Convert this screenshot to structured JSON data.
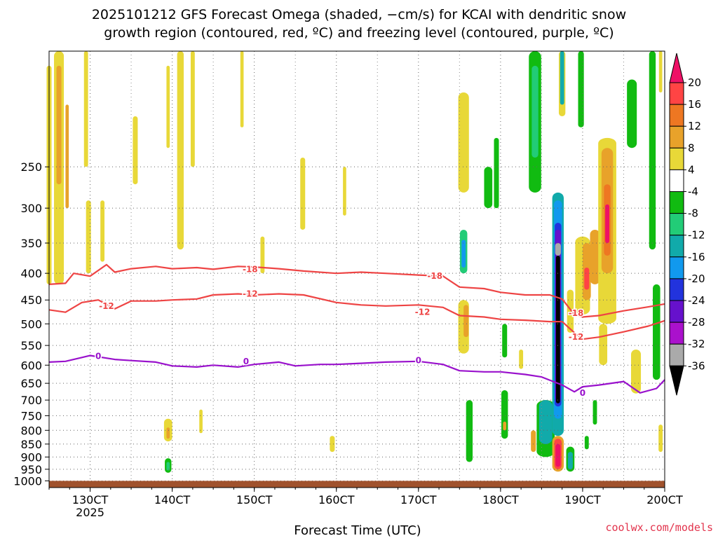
{
  "chart_data": {
    "type": "heatmap",
    "title_line1": "2025101212 GFS Forecast Omega (shaded, −cm/s) for KCAI with dendritic snow",
    "title_line2": "growth region (contoured, red, ºC) and freezing level (contoured, purple, ºC)",
    "xlabel": "Forecast Time (UTC)",
    "credit": "coolwx.com/models",
    "x_ticks": [
      {
        "label": "130CT",
        "value": 13
      },
      {
        "label": "140CT",
        "value": 14
      },
      {
        "label": "150CT",
        "value": 15
      },
      {
        "label": "160CT",
        "value": 16
      },
      {
        "label": "170CT",
        "value": 17
      },
      {
        "label": "180CT",
        "value": 18
      },
      {
        "label": "190CT",
        "value": 19
      },
      {
        "label": "200CT",
        "value": 20
      }
    ],
    "x_sublabel": "2025",
    "xlim": [
      12.5,
      20
    ],
    "y_ticks": [
      "250",
      "300",
      "350",
      "400",
      "450",
      "500",
      "550",
      "600",
      "650",
      "700",
      "750",
      "800",
      "850",
      "900",
      "950",
      "1000"
    ],
    "y_tick_values": [
      250,
      300,
      350,
      400,
      450,
      500,
      550,
      600,
      650,
      700,
      750,
      800,
      850,
      900,
      950,
      1000
    ],
    "ylim": [
      1030,
      150
    ],
    "y_scale": "log",
    "grid": true,
    "colorbar": {
      "labels": [
        "20",
        "16",
        "12",
        "8",
        "4",
        "-4",
        "-8",
        "-12",
        "-16",
        "-20",
        "-24",
        "-28",
        "-32",
        "-36"
      ],
      "colors": [
        "#ee1166",
        "#ff4444",
        "#ee7722",
        "#e8a22a",
        "#e8d838",
        "#ffffff",
        "#11bb11",
        "#22cc77",
        "#11aaaa",
        "#1199ee",
        "#2233dd",
        "#6611cc",
        "#aa11cc",
        "#aaaaaa",
        "#000000"
      ]
    },
    "series": [
      {
        "name": "-18",
        "color": "#ee4444",
        "x": [
          12.5,
          12.7,
          12.8,
          13.0,
          13.2,
          13.3,
          13.5,
          13.8,
          14.0,
          14.3,
          14.5,
          14.8,
          15.0,
          15.3,
          15.6,
          16.0,
          16.3,
          16.6,
          17.0,
          17.3,
          17.5,
          17.8,
          18.0,
          18.3,
          18.6,
          18.75,
          18.9,
          19.0,
          19.2,
          19.5,
          19.8,
          20.0
        ],
        "y": [
          420,
          418,
          400,
          405,
          385,
          398,
          392,
          388,
          392,
          390,
          393,
          388,
          389,
          392,
          396,
          400,
          398,
          400,
          403,
          405,
          425,
          428,
          435,
          440,
          440,
          448,
          480,
          485,
          482,
          472,
          464,
          458
        ]
      },
      {
        "name": "-12",
        "color": "#ee4444",
        "x": [
          12.5,
          12.7,
          12.9,
          13.1,
          13.3,
          13.5,
          13.8,
          14.0,
          14.3,
          14.5,
          14.8,
          15.0,
          15.3,
          15.6,
          16.0,
          16.3,
          16.6,
          17.0,
          17.3,
          17.5,
          17.8,
          18.0,
          18.3,
          18.6,
          18.75,
          18.9,
          19.0,
          19.2,
          19.5,
          19.8,
          20.0
        ],
        "y": [
          470,
          475,
          455,
          450,
          468,
          452,
          452,
          450,
          448,
          440,
          438,
          440,
          438,
          440,
          455,
          460,
          462,
          460,
          465,
          482,
          485,
          490,
          492,
          495,
          495,
          520,
          535,
          530,
          518,
          505,
          493
        ]
      },
      {
        "name": "0",
        "color": "#9911cc",
        "x": [
          12.5,
          12.7,
          12.9,
          13.0,
          13.3,
          13.5,
          13.8,
          14.0,
          14.3,
          14.5,
          14.8,
          15.0,
          15.3,
          15.5,
          15.8,
          16.0,
          16.3,
          16.6,
          17.0,
          17.3,
          17.5,
          17.8,
          18.0,
          18.3,
          18.5,
          18.75,
          18.9,
          19.0,
          19.2,
          19.5,
          19.7,
          19.9,
          20.0
        ],
        "y": [
          592,
          590,
          580,
          575,
          585,
          588,
          592,
          602,
          605,
          600,
          605,
          598,
          592,
          602,
          598,
          598,
          595,
          592,
          590,
          598,
          615,
          618,
          618,
          625,
          632,
          655,
          675,
          660,
          655,
          645,
          678,
          665,
          640
        ]
      }
    ],
    "contour_labels": [
      {
        "text": "-18",
        "x": 14.95,
        "y": 393,
        "color": "#ee4444"
      },
      {
        "text": "-18",
        "x": 17.2,
        "y": 405,
        "color": "#ee4444"
      },
      {
        "text": "-18",
        "x": 18.92,
        "y": 477,
        "color": "#ee4444"
      },
      {
        "text": "-12",
        "x": 13.2,
        "y": 462,
        "color": "#ee4444"
      },
      {
        "text": "-12",
        "x": 14.95,
        "y": 438,
        "color": "#ee4444"
      },
      {
        "text": "-12",
        "x": 17.05,
        "y": 475,
        "color": "#ee4444"
      },
      {
        "text": "-12",
        "x": 18.92,
        "y": 530,
        "color": "#ee4444"
      },
      {
        "text": "0",
        "x": 13.1,
        "y": 577,
        "color": "#9911cc"
      },
      {
        "text": "0",
        "x": 14.9,
        "y": 590,
        "color": "#9911cc"
      },
      {
        "text": "0",
        "x": 17.0,
        "y": 588,
        "color": "#9911cc"
      },
      {
        "text": "0",
        "x": 19.0,
        "y": 678,
        "color": "#9911cc"
      }
    ],
    "shaded_regions": [
      {
        "x": 12.62,
        "p1": 150,
        "p2": 420,
        "w": 0.12,
        "color": "#e8d838"
      },
      {
        "x": 12.62,
        "p1": 160,
        "p2": 270,
        "w": 0.06,
        "color": "#e8a22a"
      },
      {
        "x": 12.72,
        "p1": 190,
        "p2": 300,
        "w": 0.04,
        "color": "#e8a22a"
      },
      {
        "x": 12.5,
        "p1": 160,
        "p2": 420,
        "w": 0.06,
        "color": "#e8d838"
      },
      {
        "x": 12.95,
        "p1": 150,
        "p2": 250,
        "w": 0.05,
        "color": "#e8d838"
      },
      {
        "x": 12.98,
        "p1": 290,
        "p2": 400,
        "w": 0.06,
        "color": "#e8d838"
      },
      {
        "x": 13.15,
        "p1": 290,
        "p2": 380,
        "w": 0.05,
        "color": "#e8d838"
      },
      {
        "x": 13.55,
        "p1": 200,
        "p2": 270,
        "w": 0.06,
        "color": "#e8d838"
      },
      {
        "x": 14.1,
        "p1": 150,
        "p2": 360,
        "w": 0.08,
        "color": "#e8d838"
      },
      {
        "x": 14.25,
        "p1": 150,
        "p2": 250,
        "w": 0.05,
        "color": "#e8d838"
      },
      {
        "x": 13.95,
        "p1": 160,
        "p2": 230,
        "w": 0.04,
        "color": "#e8d838"
      },
      {
        "x": 14.85,
        "p1": 150,
        "p2": 210,
        "w": 0.04,
        "color": "#e8d838"
      },
      {
        "x": 15.59,
        "p1": 240,
        "p2": 330,
        "w": 0.06,
        "color": "#e8d838"
      },
      {
        "x": 15.1,
        "p1": 340,
        "p2": 400,
        "w": 0.05,
        "color": "#e8d838"
      },
      {
        "x": 16.1,
        "p1": 250,
        "p2": 310,
        "w": 0.04,
        "color": "#e8d838"
      },
      {
        "x": 13.95,
        "p1": 760,
        "p2": 840,
        "w": 0.1,
        "color": "#e8d838"
      },
      {
        "x": 13.95,
        "p1": 790,
        "p2": 830,
        "w": 0.04,
        "color": "#e8a22a"
      },
      {
        "x": 14.35,
        "p1": 730,
        "p2": 810,
        "w": 0.04,
        "color": "#e8d838"
      },
      {
        "x": 15.95,
        "p1": 820,
        "p2": 880,
        "w": 0.06,
        "color": "#e8d838"
      },
      {
        "x": 13.95,
        "p1": 905,
        "p2": 965,
        "w": 0.08,
        "color": "#11bb11"
      },
      {
        "x": 13.95,
        "p1": 920,
        "p2": 955,
        "w": 0.04,
        "color": "#22cc77"
      },
      {
        "x": 17.55,
        "p1": 180,
        "p2": 280,
        "w": 0.13,
        "color": "#e8d838"
      },
      {
        "x": 17.55,
        "p1": 450,
        "p2": 570,
        "w": 0.13,
        "color": "#e8d838"
      },
      {
        "x": 17.58,
        "p1": 460,
        "p2": 530,
        "w": 0.06,
        "color": "#e8a22a"
      },
      {
        "x": 17.55,
        "p1": 330,
        "p2": 400,
        "w": 0.09,
        "color": "#22cc77"
      },
      {
        "x": 17.55,
        "p1": 345,
        "p2": 390,
        "w": 0.05,
        "color": "#1199ee"
      },
      {
        "x": 17.62,
        "p1": 700,
        "p2": 920,
        "w": 0.08,
        "color": "#11bb11"
      },
      {
        "x": 17.85,
        "p1": 250,
        "p2": 300,
        "w": 0.1,
        "color": "#11bb11"
      },
      {
        "x": 17.95,
        "p1": 220,
        "p2": 300,
        "w": 0.06,
        "color": "#11bb11"
      },
      {
        "x": 18.05,
        "p1": 500,
        "p2": 580,
        "w": 0.06,
        "color": "#11bb11"
      },
      {
        "x": 18.05,
        "p1": 670,
        "p2": 830,
        "w": 0.08,
        "color": "#11bb11"
      },
      {
        "x": 18.05,
        "p1": 770,
        "p2": 800,
        "w": 0.04,
        "color": "#e8a22a"
      },
      {
        "x": 18.25,
        "p1": 560,
        "p2": 610,
        "w": 0.05,
        "color": "#e8d838"
      },
      {
        "x": 18.42,
        "p1": 150,
        "p2": 280,
        "w": 0.15,
        "color": "#11bb11"
      },
      {
        "x": 18.42,
        "p1": 160,
        "p2": 240,
        "w": 0.08,
        "color": "#22cc77"
      },
      {
        "x": 18.55,
        "p1": 700,
        "p2": 900,
        "w": 0.22,
        "color": "#11bb11"
      },
      {
        "x": 18.55,
        "p1": 700,
        "p2": 850,
        "w": 0.16,
        "color": "#11aaaa"
      },
      {
        "x": 18.4,
        "p1": 800,
        "p2": 880,
        "w": 0.06,
        "color": "#e8a22a"
      },
      {
        "x": 18.7,
        "p1": 280,
        "p2": 820,
        "w": 0.14,
        "color": "#11aaaa"
      },
      {
        "x": 18.7,
        "p1": 290,
        "p2": 760,
        "w": 0.1,
        "color": "#1199ee"
      },
      {
        "x": 18.7,
        "p1": 320,
        "p2": 720,
        "w": 0.08,
        "color": "#2233dd"
      },
      {
        "x": 18.7,
        "p1": 330,
        "p2": 700,
        "w": 0.07,
        "color": "#6611cc"
      },
      {
        "x": 18.7,
        "p1": 350,
        "p2": 370,
        "w": 0.07,
        "color": "#aaaaaa"
      },
      {
        "x": 18.7,
        "p1": 370,
        "p2": 710,
        "w": 0.05,
        "color": "#000000"
      },
      {
        "x": 18.7,
        "p1": 820,
        "p2": 960,
        "w": 0.14,
        "color": "#e8a22a"
      },
      {
        "x": 18.7,
        "p1": 830,
        "p2": 950,
        "w": 0.09,
        "color": "#ff4444"
      },
      {
        "x": 18.7,
        "p1": 850,
        "p2": 940,
        "w": 0.06,
        "color": "#ee1166"
      },
      {
        "x": 18.85,
        "p1": 860,
        "p2": 960,
        "w": 0.1,
        "color": "#11bb11"
      },
      {
        "x": 18.85,
        "p1": 880,
        "p2": 950,
        "w": 0.06,
        "color": "#11aaaa"
      },
      {
        "x": 18.75,
        "p1": 150,
        "p2": 200,
        "w": 0.08,
        "color": "#e8d838"
      },
      {
        "x": 18.75,
        "p1": 150,
        "p2": 190,
        "w": 0.05,
        "color": "#11aaaa"
      },
      {
        "x": 18.85,
        "p1": 430,
        "p2": 520,
        "w": 0.08,
        "color": "#e8d838"
      },
      {
        "x": 18.98,
        "p1": 150,
        "p2": 210,
        "w": 0.07,
        "color": "#11bb11"
      },
      {
        "x": 19.0,
        "p1": 340,
        "p2": 480,
        "w": 0.18,
        "color": "#e8d838"
      },
      {
        "x": 19.05,
        "p1": 350,
        "p2": 450,
        "w": 0.1,
        "color": "#e8a22a"
      },
      {
        "x": 19.05,
        "p1": 390,
        "p2": 430,
        "w": 0.06,
        "color": "#ff4444"
      },
      {
        "x": 19.05,
        "p1": 820,
        "p2": 870,
        "w": 0.05,
        "color": "#11bb11"
      },
      {
        "x": 19.15,
        "p1": 330,
        "p2": 420,
        "w": 0.12,
        "color": "#e8a22a"
      },
      {
        "x": 19.3,
        "p1": 220,
        "p2": 500,
        "w": 0.22,
        "color": "#e8d838"
      },
      {
        "x": 19.3,
        "p1": 230,
        "p2": 400,
        "w": 0.14,
        "color": "#e8a22a"
      },
      {
        "x": 19.3,
        "p1": 270,
        "p2": 370,
        "w": 0.08,
        "color": "#ee7722"
      },
      {
        "x": 19.3,
        "p1": 295,
        "p2": 350,
        "w": 0.05,
        "color": "#ee1166"
      },
      {
        "x": 19.25,
        "p1": 500,
        "p2": 600,
        "w": 0.1,
        "color": "#e8d838"
      },
      {
        "x": 19.15,
        "p1": 700,
        "p2": 780,
        "w": 0.05,
        "color": "#11bb11"
      },
      {
        "x": 19.6,
        "p1": 170,
        "p2": 230,
        "w": 0.12,
        "color": "#11bb11"
      },
      {
        "x": 19.65,
        "p1": 560,
        "p2": 680,
        "w": 0.12,
        "color": "#e8d838"
      },
      {
        "x": 19.85,
        "p1": 150,
        "p2": 360,
        "w": 0.08,
        "color": "#11bb11"
      },
      {
        "x": 19.9,
        "p1": 420,
        "p2": 640,
        "w": 0.09,
        "color": "#11bb11"
      },
      {
        "x": 19.95,
        "p1": 150,
        "p2": 180,
        "w": 0.04,
        "color": "#e8d838"
      },
      {
        "x": 19.95,
        "p1": 780,
        "p2": 880,
        "w": 0.05,
        "color": "#e8d838"
      }
    ],
    "terrain": {
      "from": 1000,
      "color": "#a0522d"
    }
  }
}
